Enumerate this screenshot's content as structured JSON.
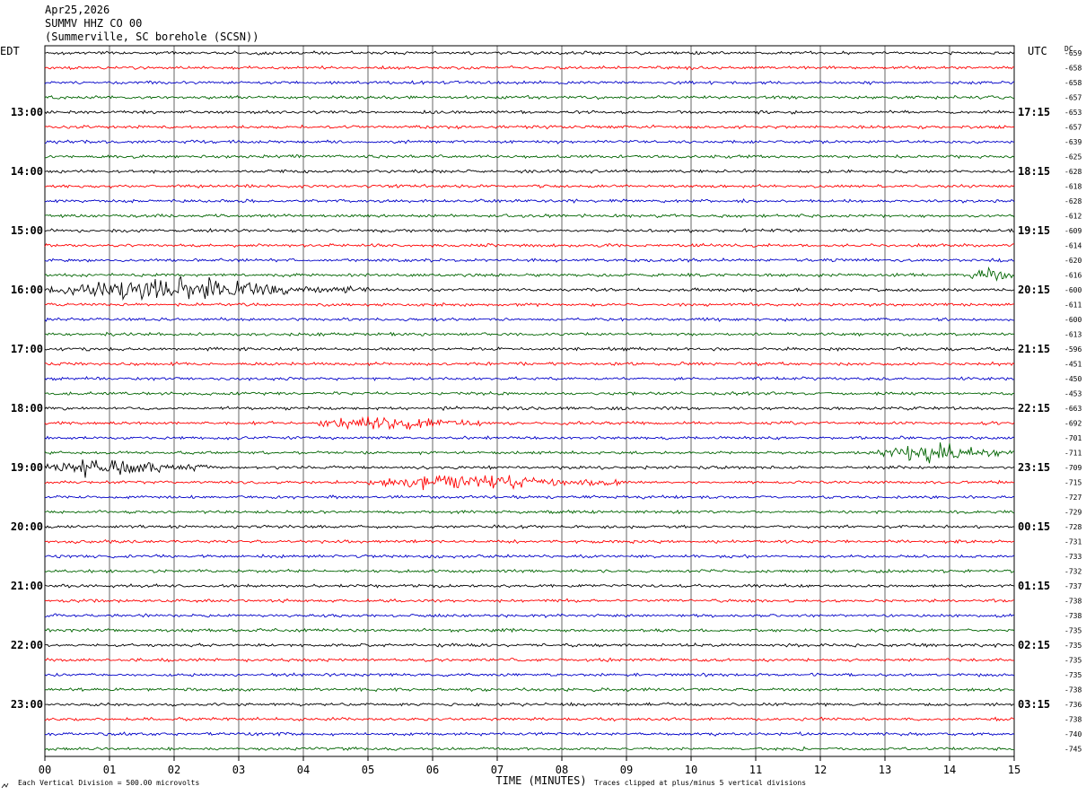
{
  "header": {
    "date": "Apr25,2026",
    "station": "SUMMV HHZ CO 00",
    "location": "(Summerville, SC borehole (SCSN))"
  },
  "chart_data": {
    "type": "line",
    "left_zone": "EDT",
    "right_zone": "UTC",
    "dc_label": "DC",
    "xlabel": "TIME (MINUTES)",
    "x_ticks": [
      "00",
      "01",
      "02",
      "03",
      "04",
      "05",
      "06",
      "07",
      "08",
      "09",
      "10",
      "11",
      "12",
      "13",
      "14",
      "15"
    ],
    "xlim": [
      0,
      15
    ],
    "left_hour_labels": [
      "13:00",
      "14:00",
      "15:00",
      "16:00",
      "17:00",
      "18:00",
      "19:00",
      "20:00",
      "21:00",
      "22:00",
      "23:00"
    ],
    "right_hour_labels": [
      "17:15",
      "18:15",
      "19:15",
      "20:15",
      "21:15",
      "22:15",
      "23:15",
      "00:15",
      "01:15",
      "02:15",
      "03:15"
    ],
    "first_labeled_row": 4,
    "rows_per_hour": 4,
    "trace_colors": [
      "#000000",
      "#ff0000",
      "#0000c8",
      "#006400"
    ],
    "grid": true,
    "dc_offsets": [
      "-659",
      "-658",
      "-658",
      "-657",
      "-653",
      "-657",
      "-639",
      "-625",
      "-628",
      "-618",
      "-628",
      "-612",
      "-609",
      "-614",
      "-620",
      "-616",
      "-600",
      "-611",
      "-600",
      "-613",
      "-596",
      "-451",
      "-450",
      "-453",
      "-663",
      "-692",
      "-701",
      "-711",
      "-709",
      "-715",
      "-727",
      "-729",
      "-728",
      "-731",
      "-733",
      "-732",
      "-737",
      "-738",
      "-738",
      "-735",
      "-735",
      "-735",
      "-735",
      "-738",
      "-736",
      "-738",
      "-740",
      "-745"
    ],
    "events": [
      {
        "row": 16,
        "start_min": 0.0,
        "end_min": 5.0,
        "amplitude": 3.0
      },
      {
        "row": 15,
        "start_min": 14.3,
        "end_min": 15.0,
        "amplitude": 1.6
      },
      {
        "row": 25,
        "start_min": 4.2,
        "end_min": 6.8,
        "amplitude": 1.7
      },
      {
        "row": 27,
        "start_min": 12.8,
        "end_min": 15.0,
        "amplitude": 2.2
      },
      {
        "row": 28,
        "start_min": 0.0,
        "end_min": 2.5,
        "amplitude": 2.4
      },
      {
        "row": 29,
        "start_min": 5.0,
        "end_min": 9.0,
        "amplitude": 1.8
      }
    ],
    "footer_left": "Each Vertical Division =  500.00 microvolts",
    "footer_right": "Traces clipped at plus/minus 5 vertical divisions"
  }
}
